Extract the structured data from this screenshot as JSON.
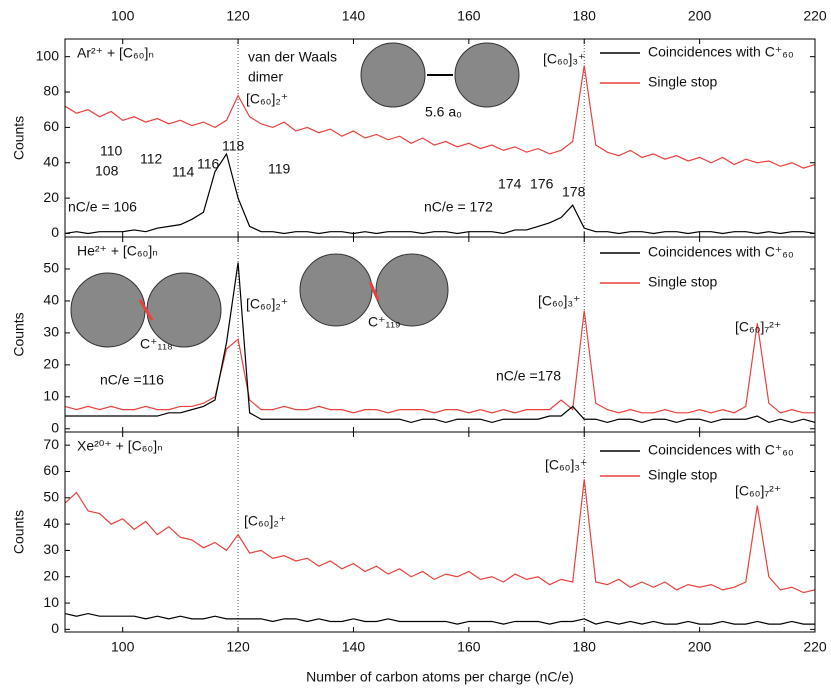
{
  "chart_data": [
    {
      "type": "line",
      "title": "Ar²⁺ + [C₆₀]ₙ",
      "ylabel": "Counts",
      "xlim": [
        90,
        220
      ],
      "xticks": [
        100,
        120,
        140,
        160,
        180,
        200,
        220
      ],
      "top_axis_labels": true,
      "bottom_axis_labels": false,
      "ylim": [
        -2,
        110
      ],
      "yticks": [
        0,
        20,
        40,
        60,
        80,
        100
      ],
      "vlines": [
        120,
        180
      ],
      "x": [
        90,
        92,
        94,
        96,
        98,
        100,
        102,
        104,
        106,
        108,
        110,
        112,
        114,
        116,
        118,
        120,
        122,
        124,
        126,
        128,
        130,
        132,
        134,
        136,
        138,
        140,
        142,
        144,
        146,
        148,
        150,
        152,
        154,
        156,
        158,
        160,
        162,
        164,
        166,
        168,
        170,
        172,
        174,
        176,
        178,
        180,
        182,
        184,
        186,
        188,
        190,
        192,
        194,
        196,
        198,
        200,
        202,
        204,
        206,
        208,
        210,
        212,
        214,
        216,
        218,
        220
      ],
      "series": [
        {
          "name": "Single stop",
          "color": "#e8423f",
          "values": [
            72,
            68,
            70,
            66,
            69,
            64,
            66,
            63,
            65,
            62,
            64,
            61,
            63,
            60,
            64,
            78,
            66,
            62,
            60,
            63,
            58,
            60,
            57,
            59,
            55,
            58,
            54,
            56,
            53,
            55,
            51,
            54,
            50,
            52,
            49,
            51,
            48,
            50,
            47,
            49,
            46,
            48,
            45,
            47,
            52,
            95,
            50,
            46,
            44,
            47,
            43,
            45,
            42,
            44,
            41,
            43,
            40,
            43,
            39,
            42,
            40,
            41,
            38,
            40,
            37,
            39
          ]
        },
        {
          "name": "Coincidences with C⁺₆₀",
          "color": "#000000",
          "values": [
            0,
            1,
            0,
            1,
            1,
            1,
            2,
            1,
            3,
            4,
            5,
            8,
            12,
            35,
            45,
            20,
            4,
            1,
            1,
            0,
            1,
            1,
            0,
            1,
            1,
            0,
            1,
            0,
            1,
            1,
            1,
            0,
            1,
            1,
            0,
            1,
            1,
            1,
            0,
            2,
            2,
            4,
            6,
            9,
            16,
            3,
            1,
            1,
            0,
            1,
            1,
            0,
            1,
            1,
            0,
            1,
            1,
            0,
            1,
            1,
            0,
            1,
            0,
            1,
            1,
            0
          ]
        }
      ],
      "annotations": [
        "van der Waals",
        "dimer",
        "[C₆₀]₂⁺",
        "5.6 a₀",
        "[C₆₀]₃⁺",
        "nC/e = 106",
        "108",
        "110",
        "112",
        "114",
        "116",
        "118",
        "119",
        "nC/e = 172",
        "174",
        "176",
        "178"
      ]
    },
    {
      "type": "line",
      "title": "He²⁺ + [C₆₀]ₙ",
      "ylabel": "Counts",
      "xlim": [
        90,
        220
      ],
      "xticks": [
        100,
        120,
        140,
        160,
        180,
        200,
        220
      ],
      "top_axis_labels": false,
      "bottom_axis_labels": false,
      "ylim": [
        -1,
        60
      ],
      "yticks": [
        0,
        10,
        20,
        30,
        40,
        50
      ],
      "vlines": [
        120,
        180
      ],
      "x": [
        90,
        92,
        94,
        96,
        98,
        100,
        102,
        104,
        106,
        108,
        110,
        112,
        114,
        116,
        118,
        120,
        122,
        124,
        126,
        128,
        130,
        132,
        134,
        136,
        138,
        140,
        142,
        144,
        146,
        148,
        150,
        152,
        154,
        156,
        158,
        160,
        162,
        164,
        166,
        168,
        170,
        172,
        174,
        176,
        178,
        180,
        182,
        184,
        186,
        188,
        190,
        192,
        194,
        196,
        198,
        200,
        202,
        204,
        206,
        208,
        210,
        212,
        214,
        216,
        218,
        220
      ],
      "series": [
        {
          "name": "Single stop",
          "color": "#e8423f",
          "values": [
            7,
            6,
            7,
            6,
            7,
            6,
            6,
            7,
            6,
            6,
            7,
            7,
            8,
            10,
            25,
            28,
            9,
            6,
            6,
            7,
            6,
            6,
            7,
            6,
            6,
            5,
            6,
            6,
            5,
            6,
            6,
            6,
            5,
            6,
            6,
            5,
            6,
            5,
            6,
            5,
            6,
            6,
            6,
            9,
            6,
            37,
            8,
            6,
            5,
            6,
            5,
            5,
            6,
            5,
            5,
            6,
            5,
            6,
            5,
            7,
            33,
            8,
            5,
            6,
            5,
            5
          ]
        },
        {
          "name": "Coincidences with C⁺₆₀",
          "color": "#000000",
          "values": [
            4,
            4,
            4,
            4,
            4,
            4,
            4,
            4,
            4,
            5,
            5,
            6,
            7,
            9,
            27,
            52,
            5,
            3,
            3,
            3,
            3,
            3,
            3,
            3,
            3,
            3,
            3,
            3,
            3,
            3,
            2,
            3,
            3,
            2,
            3,
            3,
            3,
            2,
            3,
            3,
            3,
            3,
            4,
            4,
            7,
            3,
            3,
            2,
            3,
            3,
            2,
            3,
            3,
            2,
            3,
            3,
            2,
            3,
            3,
            3,
            4,
            2,
            3,
            2,
            3,
            2
          ]
        }
      ],
      "annotations": [
        "[C₆₀]₂⁺",
        "[C₆₀]₃⁺",
        "[C₆₀]₇²⁺",
        "C⁺₁₁₈",
        "C⁺₁₁₉",
        "nC/e =116",
        "nC/e =178"
      ]
    },
    {
      "type": "line",
      "title": "Xe²⁰⁺ + [C₆₀]ₙ",
      "ylabel": "Counts",
      "xlabel": "Number of carbon atoms per charge (nC/e)",
      "xlim": [
        90,
        220
      ],
      "xticks": [
        100,
        120,
        140,
        160,
        180,
        200,
        220
      ],
      "top_axis_labels": false,
      "bottom_axis_labels": true,
      "ylim": [
        -1,
        75
      ],
      "yticks": [
        0,
        10,
        20,
        30,
        40,
        50,
        60,
        70
      ],
      "vlines": [
        120,
        180
      ],
      "x": [
        90,
        92,
        94,
        96,
        98,
        100,
        102,
        104,
        106,
        108,
        110,
        112,
        114,
        116,
        118,
        120,
        122,
        124,
        126,
        128,
        130,
        132,
        134,
        136,
        138,
        140,
        142,
        144,
        146,
        148,
        150,
        152,
        154,
        156,
        158,
        160,
        162,
        164,
        166,
        168,
        170,
        172,
        174,
        176,
        178,
        180,
        182,
        184,
        186,
        188,
        190,
        192,
        194,
        196,
        198,
        200,
        202,
        204,
        206,
        208,
        210,
        212,
        214,
        216,
        218,
        220
      ],
      "series": [
        {
          "name": "Single stop",
          "color": "#e8423f",
          "values": [
            48,
            52,
            45,
            44,
            40,
            42,
            38,
            41,
            36,
            39,
            35,
            34,
            31,
            33,
            30,
            36,
            29,
            30,
            27,
            28,
            26,
            27,
            24,
            26,
            23,
            25,
            22,
            24,
            21,
            23,
            20,
            22,
            19,
            21,
            20,
            22,
            19,
            20,
            18,
            21,
            19,
            20,
            17,
            19,
            18,
            57,
            18,
            17,
            19,
            16,
            18,
            16,
            18,
            15,
            17,
            16,
            17,
            15,
            16,
            18,
            47,
            20,
            15,
            16,
            14,
            15
          ]
        },
        {
          "name": "Coincidences with C⁺₆₀",
          "color": "#000000",
          "values": [
            6,
            5,
            6,
            5,
            5,
            5,
            5,
            4,
            5,
            4,
            5,
            4,
            4,
            5,
            4,
            4,
            4,
            4,
            3,
            4,
            4,
            3,
            4,
            3,
            3,
            4,
            3,
            3,
            4,
            3,
            3,
            3,
            3,
            3,
            2,
            3,
            3,
            3,
            2,
            3,
            3,
            3,
            2,
            3,
            3,
            4,
            2,
            3,
            2,
            3,
            2,
            3,
            2,
            2,
            3,
            2,
            2,
            3,
            2,
            2,
            3,
            2,
            2,
            3,
            2,
            2
          ]
        }
      ],
      "annotations": [
        "[C₆₀]₃⁺",
        "[C₆₀]₇²⁺",
        "[C₆₀]₂⁺"
      ]
    }
  ]
}
